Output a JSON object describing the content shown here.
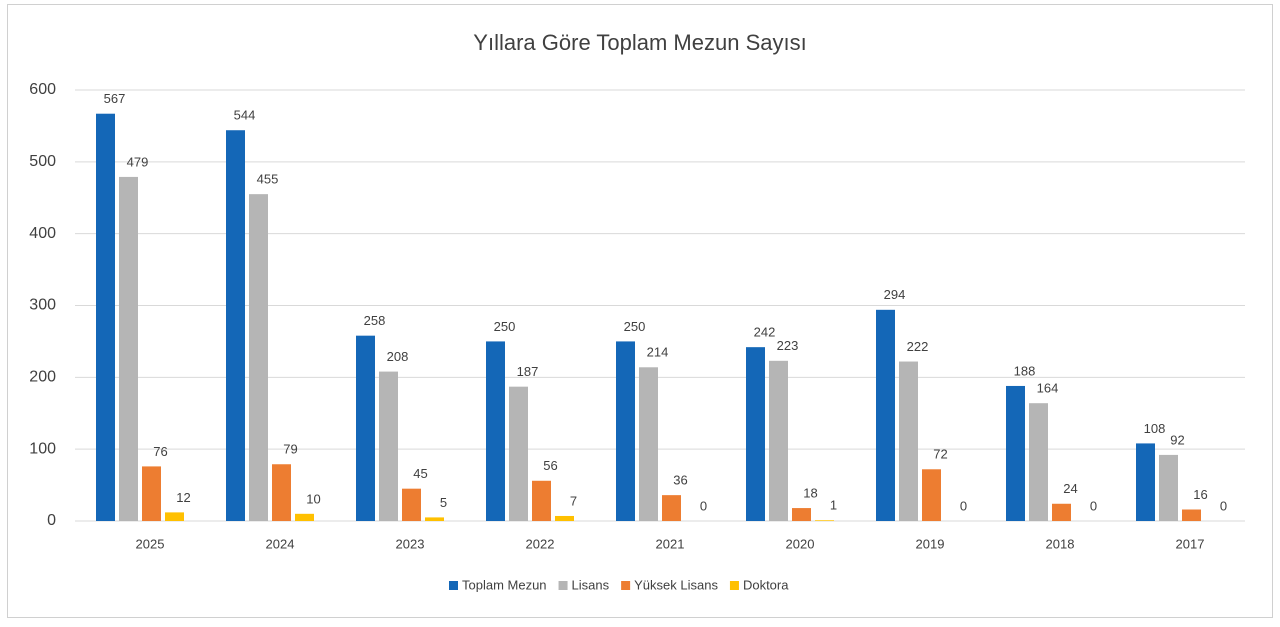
{
  "chart_data": {
    "type": "bar",
    "title": "Yıllara Göre Toplam Mezun Sayısı",
    "categories": [
      "2025",
      "2024",
      "2023",
      "2022",
      "2021",
      "2020",
      "2019",
      "2018",
      "2017"
    ],
    "series": [
      {
        "name": "Toplam Mezun",
        "color": "#1467b7",
        "values": [
          567,
          544,
          258,
          250,
          250,
          242,
          294,
          188,
          108
        ]
      },
      {
        "name": "Lisans",
        "color": "#b5b5b5",
        "values": [
          479,
          455,
          208,
          187,
          214,
          223,
          222,
          164,
          92
        ]
      },
      {
        "name": "Yüksek Lisans",
        "color": "#ed7d31",
        "values": [
          76,
          79,
          45,
          56,
          36,
          18,
          72,
          24,
          16
        ]
      },
      {
        "name": "Doktora",
        "color": "#ffc000",
        "values": [
          12,
          10,
          5,
          7,
          0,
          1,
          0,
          0,
          0
        ]
      }
    ],
    "ylim": [
      0,
      600
    ],
    "yticks": [
      0,
      100,
      200,
      300,
      400,
      500,
      600
    ],
    "grid": true,
    "legend": "bottom"
  }
}
